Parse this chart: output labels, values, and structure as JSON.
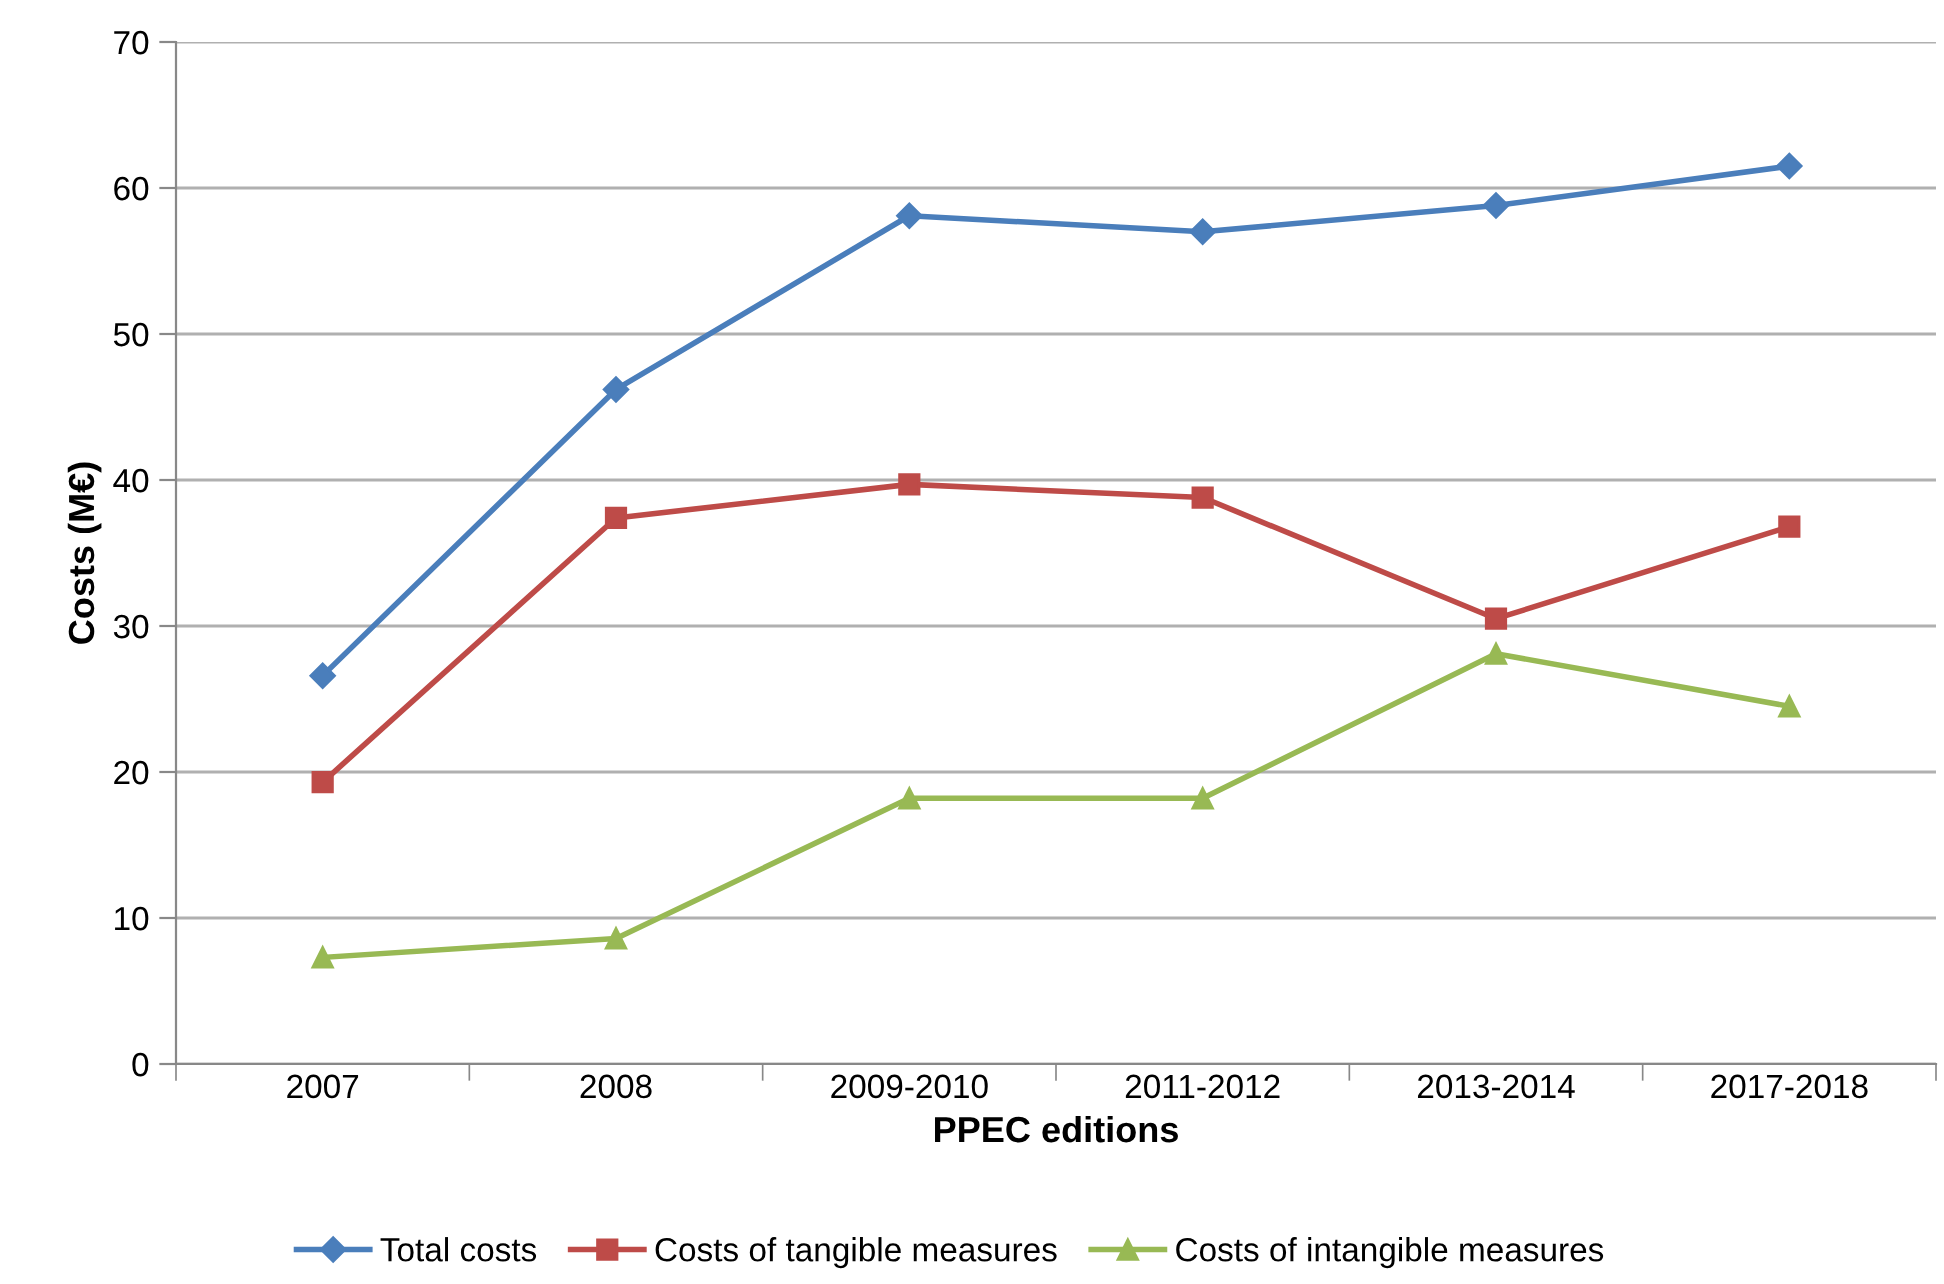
{
  "chart_data": {
    "type": "line",
    "xlabel": "PPEC editions",
    "ylabel": "Costs (M€)",
    "categories": [
      "2007",
      "2008",
      "2009-2010",
      "2011-2012",
      "2013-2014",
      "2017-2018"
    ],
    "series": [
      {
        "name": "Total costs",
        "color": "#4a7ebb",
        "marker": "diamond",
        "values": [
          26.6,
          46.2,
          58.1,
          57.0,
          58.8,
          61.5
        ]
      },
      {
        "name": "Costs of tangible measures",
        "color": "#be4b48",
        "marker": "square",
        "values": [
          19.3,
          37.4,
          39.7,
          38.8,
          30.5,
          36.8
        ]
      },
      {
        "name": "Costs of intangible measures",
        "color": "#98b954",
        "marker": "triangle",
        "values": [
          7.3,
          8.6,
          18.2,
          18.2,
          28.1,
          24.5
        ]
      }
    ],
    "ylim": [
      0,
      70
    ],
    "yticks": [
      0,
      10,
      20,
      30,
      40,
      50,
      60,
      70
    ],
    "grid": "y",
    "legend": "bottom",
    "line_style": "solid"
  }
}
